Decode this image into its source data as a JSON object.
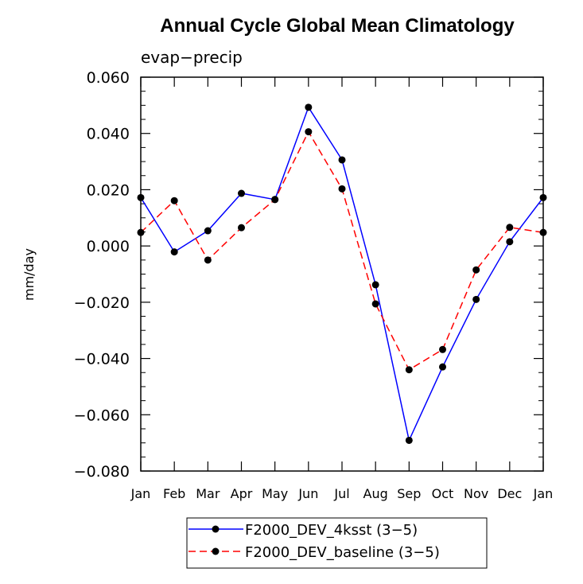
{
  "chart_data": {
    "type": "line",
    "title": "Annual Cycle Global Mean Climatology",
    "subtitle": "evap−precip",
    "xlabel": "",
    "ylabel": "mm/day",
    "categories": [
      "Jan",
      "Feb",
      "Mar",
      "Apr",
      "May",
      "Jun",
      "Jul",
      "Aug",
      "Sep",
      "Oct",
      "Nov",
      "Dec",
      "Jan"
    ],
    "ylim": [
      -0.08,
      0.06
    ],
    "yticks": [
      0.06,
      0.04,
      0.02,
      0.0,
      -0.02,
      -0.04,
      -0.06,
      -0.08
    ],
    "ytick_labels": [
      "0.060",
      "0.040",
      "0.020",
      "0.000",
      "−0.020",
      "−0.040",
      "−0.060",
      "−0.080"
    ],
    "grid": false,
    "legend_position": "bottom",
    "series": [
      {
        "name": "F2000_DEV_4ksst (3−5)",
        "color": "#0000ff",
        "dash": "solid",
        "marker": "circle",
        "values": [
          0.0172,
          -0.0021,
          0.0054,
          0.0187,
          0.0165,
          0.0493,
          0.0306,
          -0.0138,
          -0.0691,
          -0.043,
          -0.019,
          0.0015,
          0.0172
        ]
      },
      {
        "name": "F2000_DEV_baseline (3−5)",
        "color": "#ff0000",
        "dash": "dashed",
        "marker": "circle",
        "values": [
          0.0048,
          0.0161,
          -0.005,
          0.0065,
          0.0165,
          0.0406,
          0.0203,
          -0.0206,
          -0.044,
          -0.0368,
          -0.0085,
          0.0066,
          0.0048
        ]
      }
    ]
  }
}
